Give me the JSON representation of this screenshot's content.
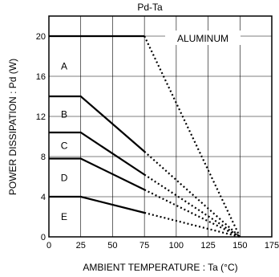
{
  "chart_data": {
    "type": "line",
    "title": "Pd-Ta",
    "xlabel": "AMBIENT  TEMPERATURE : Ta (°C)",
    "ylabel": "POWER  DISSIPATION : Pd (W)",
    "xlim": [
      0,
      175
    ],
    "ylim": [
      0,
      22
    ],
    "x_ticks": [
      0,
      25,
      50,
      75,
      100,
      125,
      150,
      175
    ],
    "y_ticks": [
      0,
      4,
      8,
      12,
      16,
      20
    ],
    "grid": true,
    "annotation": "ALUMINUM",
    "series": [
      {
        "name": "A",
        "solid": [
          [
            0,
            20
          ],
          [
            75,
            20
          ]
        ],
        "dotted": [
          [
            75,
            20
          ],
          [
            150,
            0
          ]
        ]
      },
      {
        "name": "B",
        "solid": [
          [
            0,
            14
          ],
          [
            25,
            14
          ],
          [
            75,
            8.5
          ]
        ],
        "dotted": [
          [
            75,
            8.5
          ],
          [
            150,
            0
          ]
        ]
      },
      {
        "name": "C",
        "solid": [
          [
            0,
            10.4
          ],
          [
            25,
            10.4
          ],
          [
            75,
            6.2
          ]
        ],
        "dotted": [
          [
            75,
            6.2
          ],
          [
            150,
            0
          ]
        ]
      },
      {
        "name": "D",
        "solid": [
          [
            0,
            7.8
          ],
          [
            25,
            7.8
          ],
          [
            75,
            4.7
          ]
        ],
        "dotted": [
          [
            75,
            4.7
          ],
          [
            150,
            0
          ]
        ]
      },
      {
        "name": "E",
        "solid": [
          [
            0,
            4
          ],
          [
            25,
            4
          ],
          [
            75,
            2.4
          ]
        ],
        "dotted": [
          [
            75,
            2.4
          ],
          [
            150,
            0
          ]
        ]
      }
    ]
  }
}
